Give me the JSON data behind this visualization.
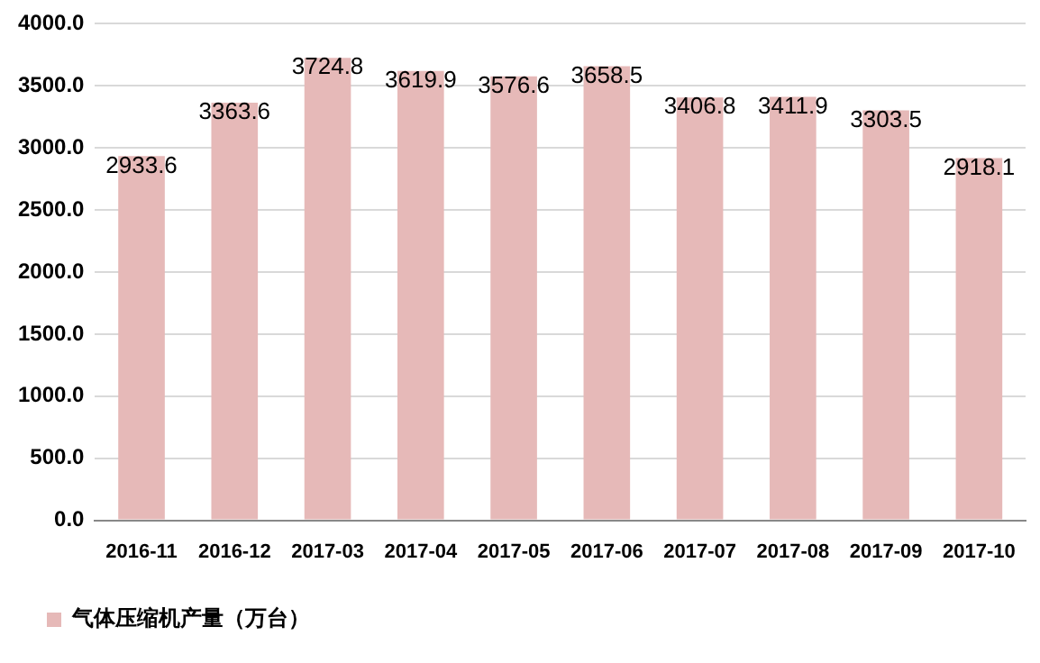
{
  "chart_data": {
    "type": "bar",
    "categories": [
      "2016-11",
      "2016-12",
      "2017-03",
      "2017-04",
      "2017-05",
      "2017-06",
      "2017-07",
      "2017-08",
      "2017-09",
      "2017-10"
    ],
    "series": [
      {
        "name": "气体压缩机产量（万台）",
        "color": "#e6b9b8",
        "values": [
          2933.6,
          3363.6,
          3724.8,
          3619.9,
          3576.6,
          3658.5,
          3406.8,
          3411.9,
          3303.5,
          2918.1
        ]
      }
    ],
    "ylim": [
      0,
      4000
    ],
    "yticks": [
      {
        "value": 0,
        "label": "0.0"
      },
      {
        "value": 500,
        "label": "500.0"
      },
      {
        "value": 1000,
        "label": "1000.0"
      },
      {
        "value": 1500,
        "label": "1500.0"
      },
      {
        "value": 2000,
        "label": "2000.0"
      },
      {
        "value": 2500,
        "label": "2500.0"
      },
      {
        "value": 3000,
        "label": "3000.0"
      },
      {
        "value": 3500,
        "label": "3500.0"
      },
      {
        "value": 4000,
        "label": "4000.0"
      }
    ],
    "grid": "y",
    "legend": "bottom left",
    "data_labels": true
  }
}
